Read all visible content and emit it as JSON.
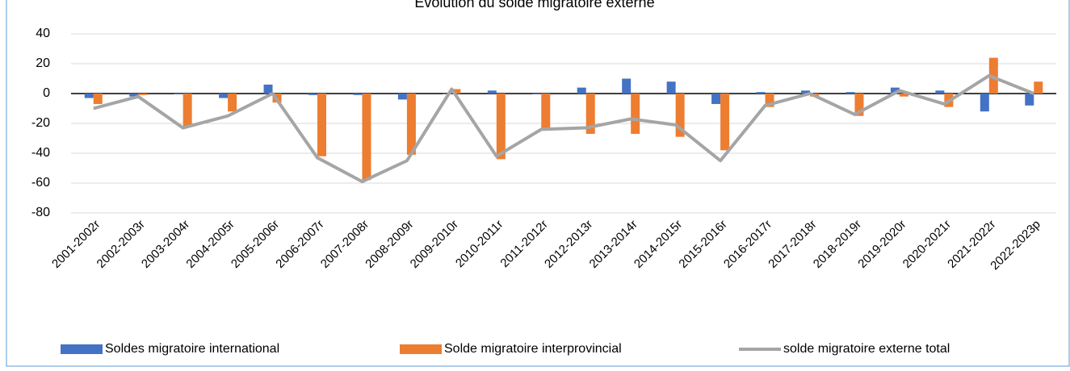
{
  "chart_data": {
    "type": "bar-line",
    "title": "Évolution du solde migratoire externe",
    "categories": [
      "2001-2002r",
      "2002-2003r",
      "2003-2004r",
      "2004-2005r",
      "2005-2006r",
      "2006-2007r",
      "2007-2008r",
      "2008-2009r",
      "2009-2010r",
      "2010-2011r",
      "2011-2012r",
      "2012-2013r",
      "2013-2014r",
      "2014-2015r",
      "2015-2016r",
      "2016-2017r",
      "2017-2018r",
      "2018-2019r",
      "2019-2020r",
      "2020-2021r",
      "2021-2022r",
      "2022-2023p"
    ],
    "series": [
      {
        "name": "Soldes migratoire international",
        "color": "#4472c4",
        "kind": "bar",
        "values": [
          -3,
          -2,
          0,
          -3,
          6,
          -1,
          -1,
          -4,
          0,
          2,
          0,
          4,
          10,
          8,
          -7,
          1,
          2,
          1,
          4,
          2,
          -12,
          -8
        ]
      },
      {
        "name": "Solde migratoire interprovincial",
        "color": "#ed7d31",
        "kind": "bar",
        "values": [
          -7,
          -1,
          -22,
          -12,
          -6,
          -42,
          -58,
          -41,
          3,
          -44,
          -24,
          -27,
          -27,
          -29,
          -38,
          -9,
          -2,
          -15,
          -2,
          -9,
          24,
          8
        ]
      },
      {
        "name": "solde migratoire  externe total",
        "color": "#a5a5a5",
        "kind": "line",
        "values": [
          -10,
          -2,
          -23,
          -15,
          0,
          -43,
          -59,
          -45,
          3,
          -42,
          -24,
          -23,
          -17,
          -21,
          -45,
          -8,
          0,
          -14,
          2,
          -7,
          12,
          0
        ]
      }
    ],
    "ylim": [
      -80,
      40
    ],
    "yticks": [
      -80,
      -60,
      -40,
      -20,
      0,
      20,
      40
    ],
    "grid": true,
    "legend": "bottom"
  }
}
